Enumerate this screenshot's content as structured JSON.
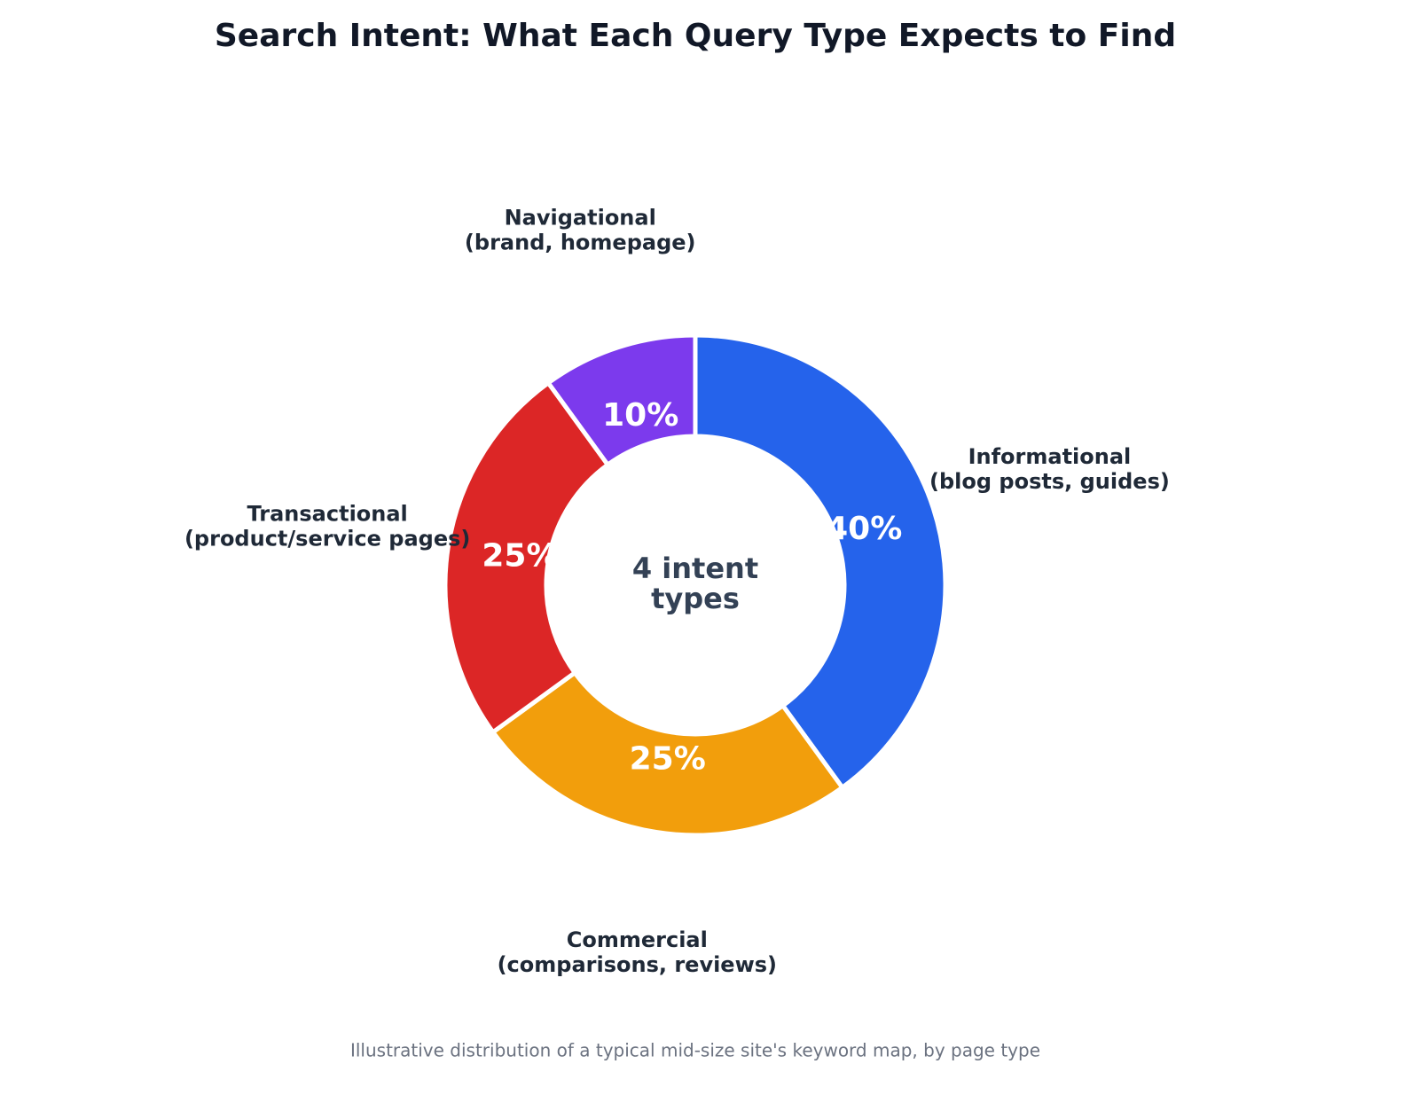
{
  "chart_data": {
    "type": "donut",
    "title": "Search Intent: What Each Query Type Expects to Find",
    "caption": "Illustrative distribution of a typical mid-size site's keyword map, by page type",
    "center_text": [
      "4 intent",
      "types"
    ],
    "categories": [
      [
        "Informational",
        "(blog posts, guides)"
      ],
      [
        "Commercial",
        "(comparisons, reviews)"
      ],
      [
        "Transactional",
        "(product/service pages)"
      ],
      [
        "Navigational",
        "(brand, homepage)"
      ]
    ],
    "values": [
      40,
      25,
      25,
      10
    ],
    "value_labels": [
      "40%",
      "25%",
      "25%",
      "10%"
    ],
    "colors": [
      "#2563eb",
      "#f29e0c",
      "#dc2626",
      "#7c3aed"
    ]
  }
}
